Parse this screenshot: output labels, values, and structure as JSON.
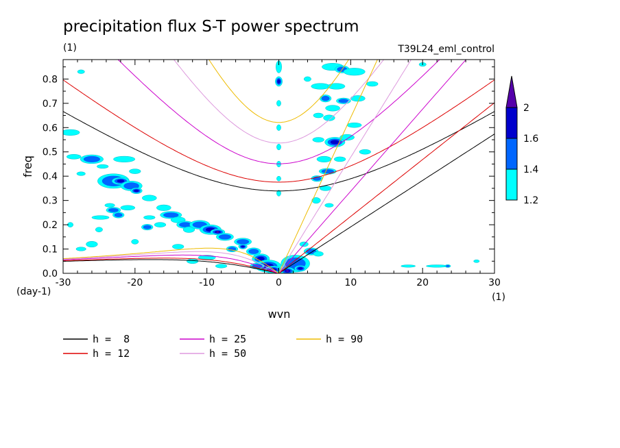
{
  "title": "precipitation flux S-T power spectrum",
  "units_label": "(1)",
  "run_label": "T39L24_eml_control",
  "chart_data": {
    "type": "contour",
    "xlabel": "wvn",
    "ylabel": "freq",
    "x_unit_label": "(1)",
    "y_unit_label": "(day-1)",
    "xlim": [
      -30,
      30
    ],
    "ylim": [
      0,
      0.88
    ],
    "x_ticks": [
      -30,
      -20,
      -10,
      0,
      10,
      20,
      30
    ],
    "y_ticks": [
      0.0,
      0.1,
      0.2,
      0.3,
      0.4,
      0.5,
      0.6,
      0.7,
      0.8
    ],
    "x_tick_labels": [
      "-30",
      "-20",
      "-10",
      "0",
      "10",
      "20",
      "30"
    ],
    "y_tick_labels": [
      "0.0",
      "0.1",
      "0.2",
      "0.3",
      "0.4",
      "0.5",
      "0.6",
      "0.7",
      "0.8"
    ],
    "colorbar": {
      "levels": [
        1.2,
        1.4,
        1.6,
        2
      ],
      "labels": [
        "1.2",
        "1.4",
        "1.6",
        "2"
      ],
      "colors": [
        "#00ffff",
        "#0066ff",
        "#0000cc",
        "#5500aa"
      ],
      "extend": "max"
    },
    "dispersion_curves": [
      {
        "label": "h =  8",
        "h": 8,
        "color": "#000000"
      },
      {
        "label": "h = 12",
        "h": 12,
        "color": "#dd0000"
      },
      {
        "label": "h = 25",
        "h": 25,
        "color": "#cc00cc"
      },
      {
        "label": "h = 50",
        "h": 50,
        "color": "#dd99dd"
      },
      {
        "label": "h = 90",
        "h": 90,
        "color": "#eebb00"
      }
    ],
    "blobs": [
      [
        -29,
        0.58,
        1.3,
        0.012,
        1
      ],
      [
        -28.5,
        0.48,
        1.0,
        0.01,
        1
      ],
      [
        -27.5,
        0.83,
        0.5,
        0.008,
        1
      ],
      [
        -26,
        0.47,
        1.6,
        0.018,
        2
      ],
      [
        -24.5,
        0.44,
        0.8,
        0.008,
        1
      ],
      [
        -27.5,
        0.41,
        0.6,
        0.008,
        1
      ],
      [
        -23,
        0.38,
        2.2,
        0.03,
        2
      ],
      [
        -22,
        0.38,
        1.2,
        0.015,
        3
      ],
      [
        -20.5,
        0.36,
        1.5,
        0.02,
        2
      ],
      [
        -19.8,
        0.34,
        0.8,
        0.012,
        3
      ],
      [
        -21,
        0.27,
        1.0,
        0.01,
        1
      ],
      [
        -23.5,
        0.28,
        0.7,
        0.008,
        1
      ],
      [
        -23,
        0.26,
        1.0,
        0.012,
        2
      ],
      [
        -18,
        0.31,
        1.0,
        0.012,
        1
      ],
      [
        -21.5,
        0.47,
        1.5,
        0.012,
        1
      ],
      [
        -20,
        0.42,
        0.8,
        0.01,
        1
      ],
      [
        -24.8,
        0.23,
        1.2,
        0.008,
        1
      ],
      [
        -22.3,
        0.24,
        0.8,
        0.012,
        2
      ],
      [
        -18,
        0.23,
        0.8,
        0.008,
        1
      ],
      [
        -16,
        0.27,
        1.0,
        0.012,
        1
      ],
      [
        -15,
        0.24,
        1.5,
        0.015,
        2
      ],
      [
        -14,
        0.22,
        1.0,
        0.012,
        1
      ],
      [
        -13,
        0.2,
        1.2,
        0.015,
        2
      ],
      [
        -12.5,
        0.18,
        0.8,
        0.012,
        1
      ],
      [
        -11,
        0.2,
        1.4,
        0.018,
        2
      ],
      [
        -9.5,
        0.18,
        1.5,
        0.02,
        3
      ],
      [
        -8.5,
        0.17,
        1.0,
        0.012,
        4
      ],
      [
        -7.5,
        0.15,
        1.2,
        0.015,
        2
      ],
      [
        -5,
        0.13,
        1.2,
        0.015,
        2
      ],
      [
        -5,
        0.11,
        0.6,
        0.01,
        3
      ],
      [
        -6.5,
        0.1,
        0.8,
        0.012,
        2
      ],
      [
        -3.5,
        0.09,
        1.0,
        0.015,
        2
      ],
      [
        -2.5,
        0.06,
        1.2,
        0.02,
        3
      ],
      [
        -1.5,
        0.03,
        1.8,
        0.025,
        4
      ],
      [
        -0.8,
        0.015,
        1.2,
        0.015,
        4
      ],
      [
        -3,
        0.03,
        1.0,
        0.012,
        2
      ],
      [
        -8,
        0.03,
        0.8,
        0.008,
        1
      ],
      [
        -10,
        0.065,
        1.2,
        0.01,
        1
      ],
      [
        -12,
        0.05,
        0.8,
        0.01,
        1
      ],
      [
        -14,
        0.11,
        0.8,
        0.01,
        1
      ],
      [
        -18.3,
        0.19,
        0.8,
        0.012,
        2
      ],
      [
        -16.5,
        0.2,
        0.8,
        0.01,
        1
      ],
      [
        -26,
        0.12,
        0.8,
        0.012,
        1
      ],
      [
        -27.5,
        0.1,
        0.7,
        0.008,
        1
      ],
      [
        -25,
        0.18,
        0.5,
        0.01,
        1
      ],
      [
        -29,
        0.2,
        0.4,
        0.01,
        1
      ],
      [
        -20,
        0.13,
        0.5,
        0.01,
        1
      ],
      [
        0,
        0.85,
        0.4,
        0.025,
        1
      ],
      [
        0,
        0.79,
        0.5,
        0.02,
        3
      ],
      [
        0,
        0.7,
        0.3,
        0.012,
        1
      ],
      [
        0,
        0.6,
        0.3,
        0.012,
        1
      ],
      [
        0,
        0.52,
        0.3,
        0.012,
        1
      ],
      [
        0,
        0.45,
        0.3,
        0.012,
        1
      ],
      [
        0,
        0.39,
        0.3,
        0.01,
        1
      ],
      [
        0,
        0.33,
        0.3,
        0.012,
        1
      ],
      [
        7.5,
        0.85,
        1.5,
        0.015,
        1
      ],
      [
        8.8,
        0.84,
        1.0,
        0.015,
        2
      ],
      [
        10.5,
        0.83,
        1.5,
        0.015,
        1
      ],
      [
        5.8,
        0.77,
        1.3,
        0.012,
        1
      ],
      [
        8,
        0.77,
        1.2,
        0.012,
        1
      ],
      [
        6.5,
        0.72,
        0.8,
        0.015,
        2
      ],
      [
        9,
        0.71,
        1.0,
        0.012,
        2
      ],
      [
        11,
        0.72,
        1.0,
        0.012,
        1
      ],
      [
        7.5,
        0.68,
        1.0,
        0.012,
        1
      ],
      [
        7,
        0.64,
        0.8,
        0.012,
        1
      ],
      [
        5.5,
        0.65,
        0.7,
        0.01,
        1
      ],
      [
        5.5,
        0.55,
        0.8,
        0.01,
        1
      ],
      [
        7.8,
        0.54,
        1.4,
        0.02,
        3
      ],
      [
        9.5,
        0.56,
        1.0,
        0.012,
        1
      ],
      [
        6.3,
        0.47,
        1.0,
        0.012,
        1
      ],
      [
        8.5,
        0.47,
        0.8,
        0.01,
        1
      ],
      [
        6.8,
        0.42,
        1.2,
        0.012,
        2
      ],
      [
        5.3,
        0.39,
        0.8,
        0.012,
        2
      ],
      [
        6.5,
        0.35,
        0.8,
        0.01,
        1
      ],
      [
        5.2,
        0.3,
        0.6,
        0.012,
        1
      ],
      [
        7,
        0.28,
        0.6,
        0.008,
        1
      ],
      [
        10.5,
        0.61,
        1.0,
        0.01,
        1
      ],
      [
        12,
        0.5,
        0.8,
        0.01,
        1
      ],
      [
        13,
        0.78,
        0.8,
        0.01,
        1
      ],
      [
        20,
        0.86,
        0.5,
        0.008,
        1
      ],
      [
        4,
        0.8,
        0.5,
        0.01,
        1
      ],
      [
        2.3,
        0.04,
        2.0,
        0.035,
        2
      ],
      [
        1.2,
        0.01,
        1.0,
        0.015,
        4
      ],
      [
        3,
        0.02,
        0.8,
        0.012,
        3
      ],
      [
        4.5,
        0.09,
        1.0,
        0.015,
        2
      ],
      [
        3.5,
        0.12,
        0.6,
        0.01,
        1
      ],
      [
        5.5,
        0.08,
        0.7,
        0.01,
        1
      ],
      [
        22,
        0.03,
        1.5,
        0.005,
        1
      ],
      [
        23.5,
        0.03,
        0.4,
        0.006,
        2
      ],
      [
        18,
        0.03,
        1.0,
        0.005,
        1
      ],
      [
        27.5,
        0.05,
        0.4,
        0.006,
        1
      ]
    ]
  }
}
